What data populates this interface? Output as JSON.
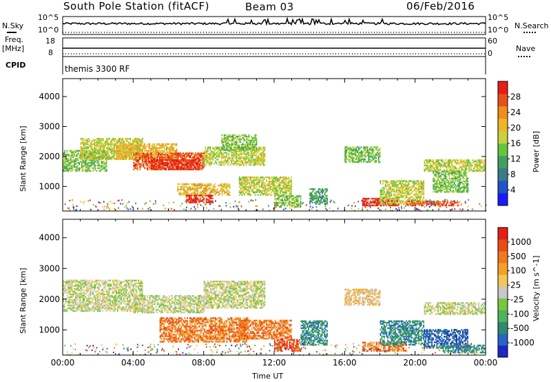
{
  "header": {
    "station": "South Pole Station (fitACF)",
    "beam": "Beam 03",
    "date": "06/Feb/2016"
  },
  "params_panel": {
    "nsky_label": "N.Sky",
    "nsky_ticks": [
      "10^5",
      "10^0"
    ],
    "nsearch_label": "N.Search",
    "nsearch_ticks": [
      "10^5",
      "10^0"
    ],
    "freq_label": "Freq.",
    "freq_unit": "[MHz]",
    "freq_ticks": [
      "18",
      "8"
    ],
    "nave_label": "Nave",
    "nave_ticks": [
      "60",
      "0"
    ],
    "cpid_label": "CPID",
    "cpid_text": "themis 3300 RF",
    "nsky_level": 0.55,
    "nsearch_level": 0.12,
    "freq_level": 0.45,
    "nave_level": 0.15
  },
  "chart_data": [
    {
      "type": "heatmap",
      "title": "",
      "parameter": "Power",
      "xlabel": "",
      "ylabel": "Slant Range [km]",
      "xlim": [
        0,
        24
      ],
      "ylim": [
        180,
        4600
      ],
      "y_ticks": [
        1000,
        2000,
        3000,
        4000
      ],
      "colorbar": {
        "label": "Power [dB]",
        "ticks": [
          "4",
          "8",
          "12",
          "16",
          "20",
          "24",
          "28"
        ],
        "colors": [
          "#1a1aff",
          "#1f55c8",
          "#3a7a8c",
          "#41a060",
          "#64c63c",
          "#c8d23c",
          "#f0b428",
          "#f08c1e",
          "#e6501e",
          "#e61e14"
        ]
      },
      "echo_regions": [
        {
          "t": [
            0.0,
            2.5
          ],
          "range": [
            1500,
            2200
          ],
          "level": 4
        },
        {
          "t": [
            1.0,
            4.5
          ],
          "range": [
            1900,
            2600
          ],
          "level": 5
        },
        {
          "t": [
            3.0,
            6.5
          ],
          "range": [
            1900,
            2400
          ],
          "level": 6
        },
        {
          "t": [
            4.0,
            8.0
          ],
          "range": [
            1550,
            2100
          ],
          "level": 8
        },
        {
          "t": [
            5.0,
            7.8
          ],
          "range": [
            1550,
            1900
          ],
          "level": 9
        },
        {
          "t": [
            6.5,
            9.5
          ],
          "range": [
            700,
            1100
          ],
          "level": 6
        },
        {
          "t": [
            7.0,
            8.5
          ],
          "range": [
            450,
            700
          ],
          "level": 9
        },
        {
          "t": [
            8.0,
            11.5
          ],
          "range": [
            1700,
            2300
          ],
          "level": 5
        },
        {
          "t": [
            9.0,
            11.0
          ],
          "range": [
            2200,
            2700
          ],
          "level": 4
        },
        {
          "t": [
            10.0,
            13.0
          ],
          "range": [
            700,
            1300
          ],
          "level": 5
        },
        {
          "t": [
            12.0,
            13.5
          ],
          "range": [
            300,
            700
          ],
          "level": 4
        },
        {
          "t": [
            14.0,
            15.0
          ],
          "range": [
            400,
            900
          ],
          "level": 3
        },
        {
          "t": [
            16.0,
            18.0
          ],
          "range": [
            1800,
            2300
          ],
          "level": 4
        },
        {
          "t": [
            17.0,
            19.0
          ],
          "range": [
            350,
            600
          ],
          "level": 9
        },
        {
          "t": [
            18.0,
            20.5
          ],
          "range": [
            400,
            1200
          ],
          "level": 5
        },
        {
          "t": [
            19.5,
            22.5
          ],
          "range": [
            350,
            500
          ],
          "level": 8
        },
        {
          "t": [
            20.5,
            24.0
          ],
          "range": [
            1500,
            1900
          ],
          "level": 5
        },
        {
          "t": [
            21.0,
            23.0
          ],
          "range": [
            800,
            1500
          ],
          "level": 4
        }
      ]
    },
    {
      "type": "heatmap",
      "title": "",
      "parameter": "Velocity",
      "xlabel": "Time UT",
      "ylabel": "Slant Range [km]",
      "xlim": [
        0,
        24
      ],
      "ylim": [
        180,
        4600
      ],
      "x_ticks": [
        "00:00",
        "04:00",
        "08:00",
        "12:00",
        "16:00",
        "20:00",
        "00:00"
      ],
      "y_ticks": [
        1000,
        2000,
        3000,
        4000
      ],
      "colorbar": {
        "label": "Velocity [m s^-1]",
        "ticks": [
          "1000",
          "500",
          "100",
          "25",
          "-25",
          "-100",
          "-500",
          "-1000"
        ],
        "colors": [
          "#1a28c8",
          "#2864c8",
          "#2d8c6e",
          "#50b45a",
          "#78c83c",
          "#c8c8c8",
          "#f0c85a",
          "#f5a028",
          "#f0781e",
          "#eb4b14",
          "#e61e14"
        ]
      },
      "echo_regions": [
        {
          "t": [
            0.0,
            4.5
          ],
          "range": [
            1600,
            2600
          ],
          "level": 5
        },
        {
          "t": [
            4.0,
            8.0
          ],
          "range": [
            1550,
            2100
          ],
          "level": 5
        },
        {
          "t": [
            8.0,
            11.5
          ],
          "range": [
            1700,
            2600
          ],
          "level": 5
        },
        {
          "t": [
            5.5,
            10.5
          ],
          "range": [
            600,
            1400
          ],
          "level": 8
        },
        {
          "t": [
            10.0,
            13.0
          ],
          "range": [
            700,
            1300
          ],
          "level": 8
        },
        {
          "t": [
            12.0,
            13.5
          ],
          "range": [
            300,
            700
          ],
          "level": 9
        },
        {
          "t": [
            13.5,
            15.0
          ],
          "range": [
            500,
            1300
          ],
          "level": 2
        },
        {
          "t": [
            16.0,
            18.0
          ],
          "range": [
            1800,
            2300
          ],
          "level": 6
        },
        {
          "t": [
            17.0,
            19.5
          ],
          "range": [
            300,
            600
          ],
          "level": 8
        },
        {
          "t": [
            18.0,
            20.5
          ],
          "range": [
            500,
            1300
          ],
          "level": 2
        },
        {
          "t": [
            20.5,
            23.0
          ],
          "range": [
            400,
            1000
          ],
          "level": 1
        },
        {
          "t": [
            21.5,
            24.0
          ],
          "range": [
            250,
            500
          ],
          "level": 2
        },
        {
          "t": [
            20.5,
            24.0
          ],
          "range": [
            1500,
            1900
          ],
          "level": 5
        }
      ]
    }
  ]
}
